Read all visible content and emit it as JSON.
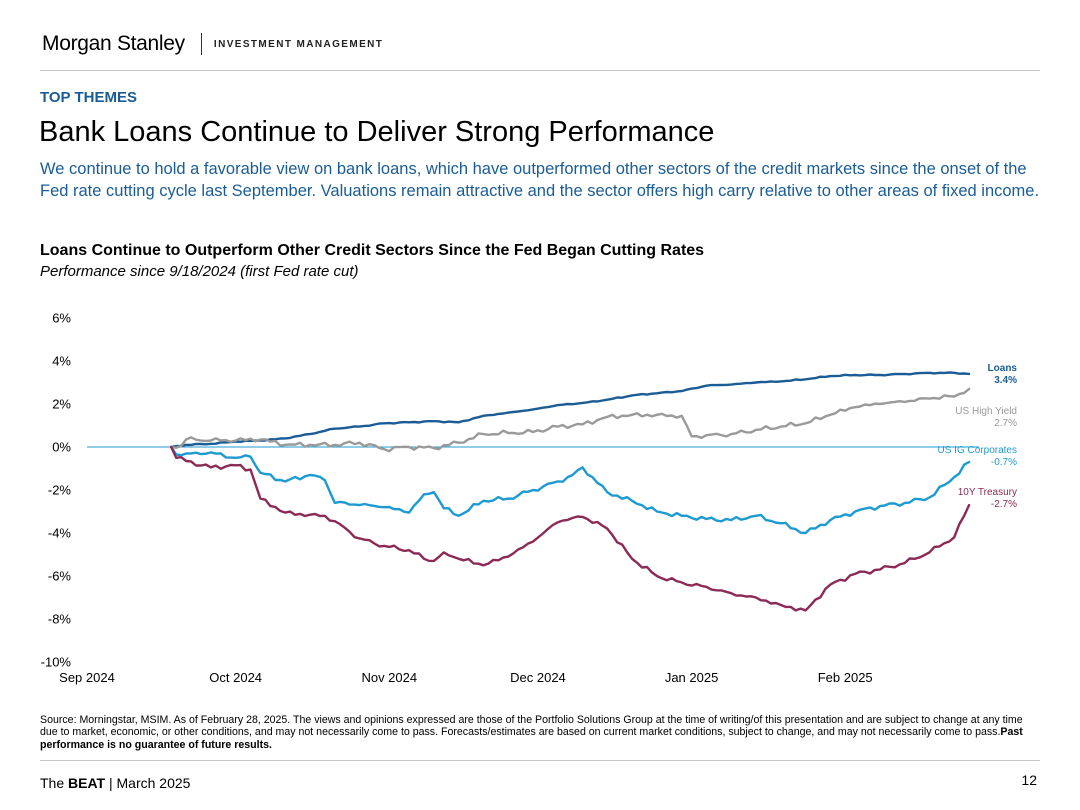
{
  "brand": {
    "name": "Morgan Stanley",
    "divider": "|",
    "division": "INVESTMENT MANAGEMENT"
  },
  "kicker": "TOP THEMES",
  "title": "Bank Loans Continue to Deliver Strong Performance",
  "lede": "We continue to hold a favorable view on bank loans, which have outperformed other sectors of the credit markets since the onset of the Fed rate cutting cycle last September. Valuations remain attractive and the sector offers high carry relative to other areas of fixed income.",
  "chart_data": {
    "type": "line",
    "title": "Loans Continue to Outperform Other Credit Sectors Since the Fed Began Cutting Rates",
    "subtitle": "Performance since 9/18/2024 (first Fed rate cut)",
    "xlabel": "",
    "ylabel": "",
    "x_unit": "days since 9/1/2024",
    "xlim": [
      0,
      180
    ],
    "ylim": [
      -10,
      6
    ],
    "y_ticks": [
      6,
      4,
      2,
      0,
      -2,
      -4,
      -6,
      -8,
      -10
    ],
    "y_tick_labels": [
      "6%",
      "4%",
      "2%",
      "0%",
      "-2%",
      "-4%",
      "-6%",
      "-8%",
      "-10%"
    ],
    "x_ticks": [
      0,
      30,
      61,
      91,
      122,
      153
    ],
    "x_tick_labels": [
      "Sep 2024",
      "Oct 2024",
      "Nov 2024",
      "Dec 2024",
      "Jan 2025",
      "Feb 2025"
    ],
    "grid": false,
    "zero_line": true,
    "series": [
      {
        "name": "Loans",
        "label_value": "3.4%",
        "color": "#1a5c96",
        "x": [
          17,
          20,
          25,
          30,
          35,
          40,
          45,
          50,
          55,
          60,
          65,
          70,
          75,
          80,
          85,
          90,
          95,
          100,
          105,
          110,
          115,
          120,
          125,
          130,
          135,
          140,
          145,
          150,
          155,
          160,
          165,
          170,
          175,
          178
        ],
        "y": [
          0,
          0.1,
          0.15,
          0.25,
          0.3,
          0.4,
          0.6,
          0.85,
          0.95,
          1.1,
          1.15,
          1.2,
          1.15,
          1.45,
          1.6,
          1.75,
          1.95,
          2.05,
          2.2,
          2.4,
          2.5,
          2.6,
          2.85,
          2.9,
          3.0,
          3.05,
          3.15,
          3.3,
          3.35,
          3.35,
          3.4,
          3.45,
          3.45,
          3.4
        ]
      },
      {
        "name": "US High Yield",
        "label_value": "2.7%",
        "color": "#9a9a9a",
        "x": [
          17,
          19,
          20,
          25,
          30,
          35,
          40,
          45,
          50,
          55,
          60,
          65,
          70,
          75,
          80,
          85,
          90,
          95,
          100,
          105,
          110,
          115,
          120,
          122,
          125,
          130,
          135,
          140,
          145,
          150,
          155,
          160,
          165,
          170,
          175,
          178
        ],
        "y": [
          0,
          0.05,
          0.35,
          0.3,
          0.3,
          0.35,
          0.1,
          0.1,
          0.1,
          0.2,
          -0.1,
          0,
          -0.05,
          0.2,
          0.6,
          0.65,
          0.7,
          0.95,
          1.05,
          1.4,
          1.5,
          1.5,
          1.45,
          0.5,
          0.55,
          0.6,
          0.8,
          0.95,
          1.1,
          1.5,
          1.85,
          2.0,
          2.1,
          2.25,
          2.35,
          2.7
        ]
      },
      {
        "name": "US IG Corporates",
        "label_value": "-0.7%",
        "color": "#1d9ad1",
        "x": [
          17,
          18,
          20,
          25,
          30,
          33,
          35,
          40,
          45,
          48,
          50,
          55,
          60,
          65,
          68,
          70,
          72,
          75,
          80,
          85,
          90,
          95,
          98,
          100,
          105,
          110,
          115,
          120,
          125,
          130,
          135,
          140,
          145,
          150,
          155,
          160,
          165,
          170,
          175,
          178
        ],
        "y": [
          0,
          -0.35,
          -0.3,
          -0.25,
          -0.5,
          -0.45,
          -1.2,
          -1.6,
          -1.3,
          -1.55,
          -2.6,
          -2.7,
          -2.8,
          -3.05,
          -2.2,
          -2.1,
          -2.85,
          -3.2,
          -2.5,
          -2.4,
          -2.0,
          -1.6,
          -1.3,
          -0.95,
          -2.1,
          -2.5,
          -3.0,
          -3.2,
          -3.35,
          -3.4,
          -3.2,
          -3.55,
          -4.0,
          -3.4,
          -3.0,
          -2.75,
          -2.6,
          -2.35,
          -1.4,
          -0.7
        ]
      },
      {
        "name": "10Y Treasury",
        "label_value": "-2.7%",
        "color": "#8b2a55",
        "x": [
          17,
          18,
          20,
          25,
          30,
          33,
          35,
          40,
          45,
          48,
          50,
          55,
          60,
          65,
          68,
          70,
          72,
          75,
          80,
          85,
          90,
          95,
          98,
          100,
          105,
          110,
          115,
          120,
          125,
          130,
          135,
          140,
          145,
          150,
          155,
          160,
          165,
          170,
          175,
          178
        ],
        "y": [
          0,
          -0.5,
          -0.65,
          -0.95,
          -0.85,
          -1.05,
          -2.4,
          -3.05,
          -3.15,
          -3.2,
          -3.45,
          -4.25,
          -4.6,
          -4.8,
          -5.2,
          -5.3,
          -4.9,
          -5.2,
          -5.5,
          -5.1,
          -4.4,
          -3.5,
          -3.3,
          -3.25,
          -3.8,
          -5.2,
          -6.0,
          -6.3,
          -6.5,
          -6.8,
          -7.0,
          -7.35,
          -7.6,
          -6.4,
          -5.9,
          -5.7,
          -5.4,
          -4.9,
          -4.2,
          -2.7
        ]
      }
    ]
  },
  "source": {
    "text": "Source: Morningstar, MSIM. As of February 28, 2025. The views and opinions expressed are those of the Portfolio Solutions Group at the time of writing/of this presentation and are subject to change at any time due to market, economic, or other conditions, and may not necessarily come to pass. Forecasts/estimates are based on current market conditions, subject to change, and may not necessarily come to pass.",
    "disclaimer": "Past performance is no guarantee of future results."
  },
  "footer": {
    "publication": "The BEAT",
    "separator": " | ",
    "date": "March 2025",
    "page": "12"
  }
}
